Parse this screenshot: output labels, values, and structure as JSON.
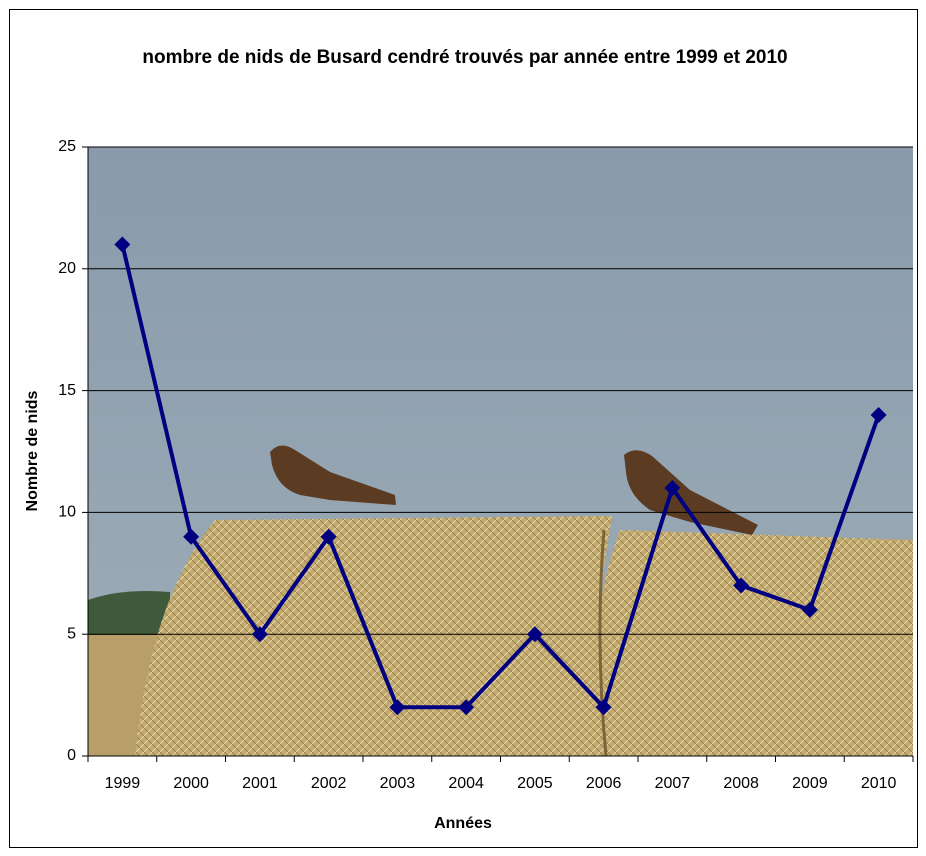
{
  "chart_data": {
    "type": "line",
    "title": "nombre de nids de Busard cendré trouvés par année entre 1999 et 2010",
    "x_label": "Années",
    "y_label": "Nombre de nids",
    "categories": [
      "1999",
      "2000",
      "2001",
      "2002",
      "2003",
      "2004",
      "2005",
      "2006",
      "2007",
      "2008",
      "2009",
      "2010"
    ],
    "values": [
      21,
      9,
      5,
      9,
      2,
      2,
      5,
      2,
      11,
      7,
      6,
      14
    ],
    "color": "#000080",
    "ylim": [
      0,
      25
    ],
    "yticks": [
      0,
      5,
      10,
      15,
      20,
      25
    ],
    "grid": true
  }
}
